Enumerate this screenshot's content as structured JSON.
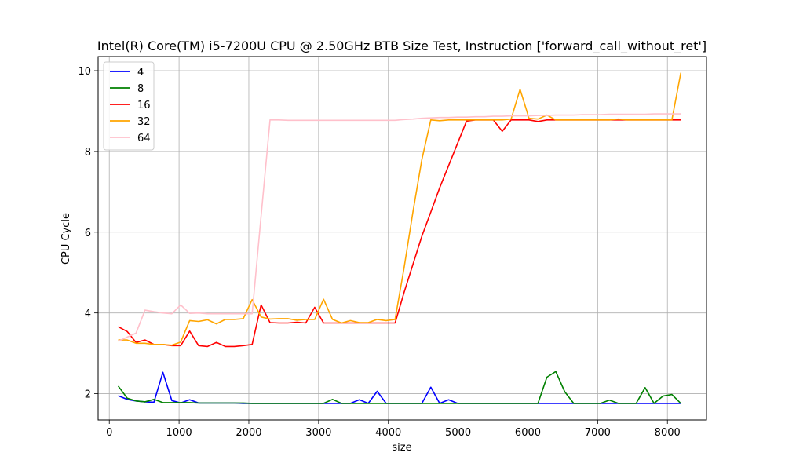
{
  "chart_data": {
    "type": "line",
    "title": "Intel(R) Core(TM) i5-7200U CPU @ 2.50GHz BTB Size Test, Instruction ['forward_call_without_ret']",
    "xlabel": "size",
    "ylabel": "CPU Cycle",
    "xlim": [
      -160,
      8560
    ],
    "ylim": [
      1.35,
      10.35
    ],
    "xticks": [
      0,
      1000,
      2000,
      3000,
      4000,
      5000,
      6000,
      7000,
      8000
    ],
    "yticks": [
      2,
      4,
      6,
      8,
      10
    ],
    "grid": true,
    "legend_position": "top-left",
    "x": [
      128,
      256,
      384,
      512,
      640,
      768,
      896,
      1024,
      1152,
      1280,
      1408,
      1536,
      1664,
      1792,
      1920,
      2048,
      2176,
      2304,
      2432,
      2560,
      2688,
      2816,
      2944,
      3072,
      3200,
      3328,
      3456,
      3584,
      3712,
      3840,
      3968,
      4096,
      4224,
      4352,
      4480,
      4608,
      4736,
      4864,
      4992,
      5120,
      5248,
      5376,
      5504,
      5632,
      5760,
      5888,
      6016,
      6144,
      6272,
      6400,
      6528,
      6656,
      6784,
      6912,
      7040,
      7168,
      7296,
      7424,
      7552,
      7680,
      7808,
      7936,
      8064,
      8192
    ],
    "series": [
      {
        "name": "4",
        "color": "#0000ff",
        "values": [
          1.95,
          1.86,
          1.82,
          1.8,
          1.79,
          2.53,
          1.83,
          1.77,
          1.85,
          1.77,
          1.77,
          1.77,
          1.77,
          1.77,
          1.76,
          1.76,
          1.76,
          1.76,
          1.76,
          1.76,
          1.76,
          1.76,
          1.76,
          1.76,
          1.76,
          1.76,
          1.76,
          1.85,
          1.76,
          2.06,
          1.76,
          1.76,
          1.76,
          1.76,
          1.76,
          2.16,
          1.76,
          1.85,
          1.76,
          1.76,
          1.76,
          1.76,
          1.76,
          1.76,
          1.76,
          1.76,
          1.76,
          1.76,
          1.76,
          1.76,
          1.76,
          1.76,
          1.76,
          1.76,
          1.76,
          1.76,
          1.76,
          1.76,
          1.76,
          1.76,
          1.76,
          1.76,
          1.76,
          1.76
        ]
      },
      {
        "name": "8",
        "color": "#008000",
        "values": [
          2.19,
          1.89,
          1.82,
          1.8,
          1.86,
          1.78,
          1.78,
          1.78,
          1.78,
          1.77,
          1.77,
          1.77,
          1.77,
          1.77,
          1.77,
          1.76,
          1.76,
          1.76,
          1.76,
          1.76,
          1.76,
          1.76,
          1.76,
          1.76,
          1.86,
          1.76,
          1.76,
          1.76,
          1.76,
          1.76,
          1.76,
          1.76,
          1.76,
          1.76,
          1.76,
          1.76,
          1.76,
          1.76,
          1.76,
          1.76,
          1.76,
          1.76,
          1.76,
          1.76,
          1.76,
          1.76,
          1.76,
          1.76,
          2.41,
          2.55,
          2.05,
          1.76,
          1.76,
          1.76,
          1.76,
          1.84,
          1.76,
          1.76,
          1.76,
          2.15,
          1.76,
          1.94,
          1.98,
          1.76
        ]
      },
      {
        "name": "16",
        "color": "#ff0000",
        "values": [
          3.66,
          3.54,
          3.27,
          3.33,
          3.22,
          3.22,
          3.19,
          3.19,
          3.55,
          3.19,
          3.17,
          3.27,
          3.17,
          3.17,
          3.19,
          3.22,
          4.2,
          3.76,
          3.75,
          3.75,
          3.77,
          3.75,
          4.14,
          3.75,
          3.75,
          3.75,
          3.75,
          3.75,
          3.75,
          3.75,
          3.75,
          3.75,
          4.5,
          5.2,
          5.9,
          6.5,
          7.1,
          7.65,
          8.2,
          8.75,
          8.78,
          8.78,
          8.78,
          8.5,
          8.78,
          8.78,
          8.78,
          8.74,
          8.78,
          8.78,
          8.78,
          8.78,
          8.78,
          8.78,
          8.78,
          8.78,
          8.78,
          8.78,
          8.78,
          8.78,
          8.78,
          8.78,
          8.78,
          8.78
        ]
      },
      {
        "name": "32",
        "color": "#ffa500",
        "values": [
          3.33,
          3.33,
          3.25,
          3.25,
          3.22,
          3.22,
          3.2,
          3.28,
          3.81,
          3.79,
          3.83,
          3.73,
          3.84,
          3.84,
          3.86,
          4.33,
          3.9,
          3.85,
          3.86,
          3.86,
          3.82,
          3.84,
          3.84,
          4.34,
          3.84,
          3.75,
          3.81,
          3.76,
          3.76,
          3.84,
          3.81,
          3.84,
          5.1,
          6.5,
          7.8,
          8.78,
          8.76,
          8.78,
          8.78,
          8.78,
          8.78,
          8.78,
          8.78,
          8.78,
          8.8,
          9.54,
          8.82,
          8.8,
          8.9,
          8.78,
          8.78,
          8.78,
          8.78,
          8.78,
          8.78,
          8.78,
          8.8,
          8.78,
          8.78,
          8.78,
          8.78,
          8.78,
          8.78,
          9.95
        ]
      },
      {
        "name": "64",
        "color": "#ffc0cb",
        "values": [
          3.3,
          3.4,
          3.5,
          4.07,
          4.03,
          4.0,
          3.98,
          4.2,
          3.99,
          4.0,
          3.98,
          3.98,
          3.98,
          3.98,
          3.98,
          3.98,
          6.4,
          8.78,
          8.78,
          8.77,
          8.77,
          8.77,
          8.77,
          8.77,
          8.77,
          8.77,
          8.77,
          8.77,
          8.77,
          8.77,
          8.77,
          8.77,
          8.79,
          8.8,
          8.82,
          8.83,
          8.84,
          8.84,
          8.85,
          8.85,
          8.86,
          8.86,
          8.87,
          8.87,
          8.88,
          8.88,
          8.88,
          8.89,
          8.89,
          8.9,
          8.9,
          8.9,
          8.91,
          8.91,
          8.91,
          8.92,
          8.92,
          8.92,
          8.92,
          8.92,
          8.93,
          8.93,
          8.93,
          8.93
        ]
      }
    ]
  }
}
